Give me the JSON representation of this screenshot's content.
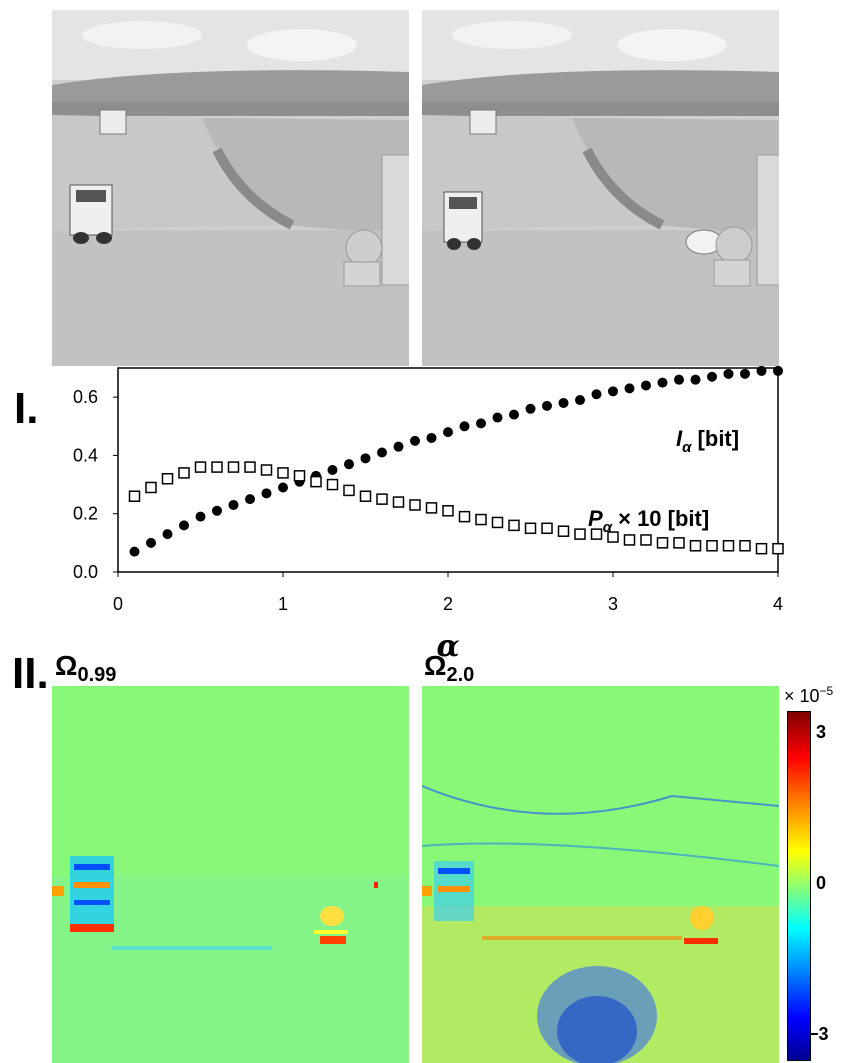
{
  "panel_labels": {
    "panel_1": "I.",
    "panel_2": "II."
  },
  "chart_data": {
    "type": "scatter",
    "xlabel": "α",
    "ylabel": "",
    "xlim": [
      0,
      4
    ],
    "ylim": [
      0,
      0.7
    ],
    "x_ticks": [
      "0",
      "1",
      "2",
      "3",
      "4"
    ],
    "y_ticks": [
      "0.0",
      "0.2",
      "0.4",
      "0.6"
    ],
    "series": [
      {
        "name": "I_α [bit]",
        "label_main": "I",
        "label_sub": "α",
        "label_rest": " [bit]",
        "marker": "filled-circle",
        "x": [
          0.1,
          0.2,
          0.3,
          0.4,
          0.5,
          0.6,
          0.7,
          0.8,
          0.9,
          1.0,
          1.1,
          1.2,
          1.3,
          1.4,
          1.5,
          1.6,
          1.7,
          1.8,
          1.9,
          2.0,
          2.1,
          2.2,
          2.3,
          2.4,
          2.5,
          2.6,
          2.7,
          2.8,
          2.9,
          3.0,
          3.1,
          3.2,
          3.3,
          3.4,
          3.5,
          3.6,
          3.7,
          3.8,
          3.9,
          4.0
        ],
        "values": [
          0.07,
          0.1,
          0.13,
          0.16,
          0.19,
          0.21,
          0.23,
          0.25,
          0.27,
          0.29,
          0.31,
          0.33,
          0.35,
          0.37,
          0.39,
          0.41,
          0.43,
          0.45,
          0.46,
          0.48,
          0.5,
          0.51,
          0.53,
          0.54,
          0.56,
          0.57,
          0.58,
          0.59,
          0.61,
          0.62,
          0.63,
          0.64,
          0.65,
          0.66,
          0.66,
          0.67,
          0.68,
          0.68,
          0.69,
          0.69
        ]
      },
      {
        "name": "P_α × 10 [bit]",
        "label_main": "P",
        "label_sub": "α",
        "label_rest": " × 10 [bit]",
        "marker": "open-square",
        "x": [
          0.1,
          0.2,
          0.3,
          0.4,
          0.5,
          0.6,
          0.7,
          0.8,
          0.9,
          1.0,
          1.1,
          1.2,
          1.3,
          1.4,
          1.5,
          1.6,
          1.7,
          1.8,
          1.9,
          2.0,
          2.1,
          2.2,
          2.3,
          2.4,
          2.5,
          2.6,
          2.7,
          2.8,
          2.9,
          3.0,
          3.1,
          3.2,
          3.3,
          3.4,
          3.5,
          3.6,
          3.7,
          3.8,
          3.9,
          4.0
        ],
        "values": [
          0.26,
          0.29,
          0.32,
          0.34,
          0.36,
          0.36,
          0.36,
          0.36,
          0.35,
          0.34,
          0.33,
          0.31,
          0.3,
          0.28,
          0.26,
          0.25,
          0.24,
          0.23,
          0.22,
          0.21,
          0.19,
          0.18,
          0.17,
          0.16,
          0.15,
          0.15,
          0.14,
          0.13,
          0.13,
          0.12,
          0.11,
          0.11,
          0.1,
          0.1,
          0.09,
          0.09,
          0.09,
          0.09,
          0.08,
          0.08
        ]
      }
    ]
  },
  "heatmaps": {
    "left": {
      "title_main": "Ω",
      "title_sub": "0.99"
    },
    "right": {
      "title_main": "Ω",
      "title_sub": "2.0"
    }
  },
  "colorbar": {
    "multiplier_text": "× 10",
    "multiplier_exp": "−5",
    "ticks": [
      "3",
      "0",
      "−3"
    ],
    "colors": {
      "high": "#7f0000",
      "mid": "#8fff70",
      "low": "#00008f"
    }
  }
}
